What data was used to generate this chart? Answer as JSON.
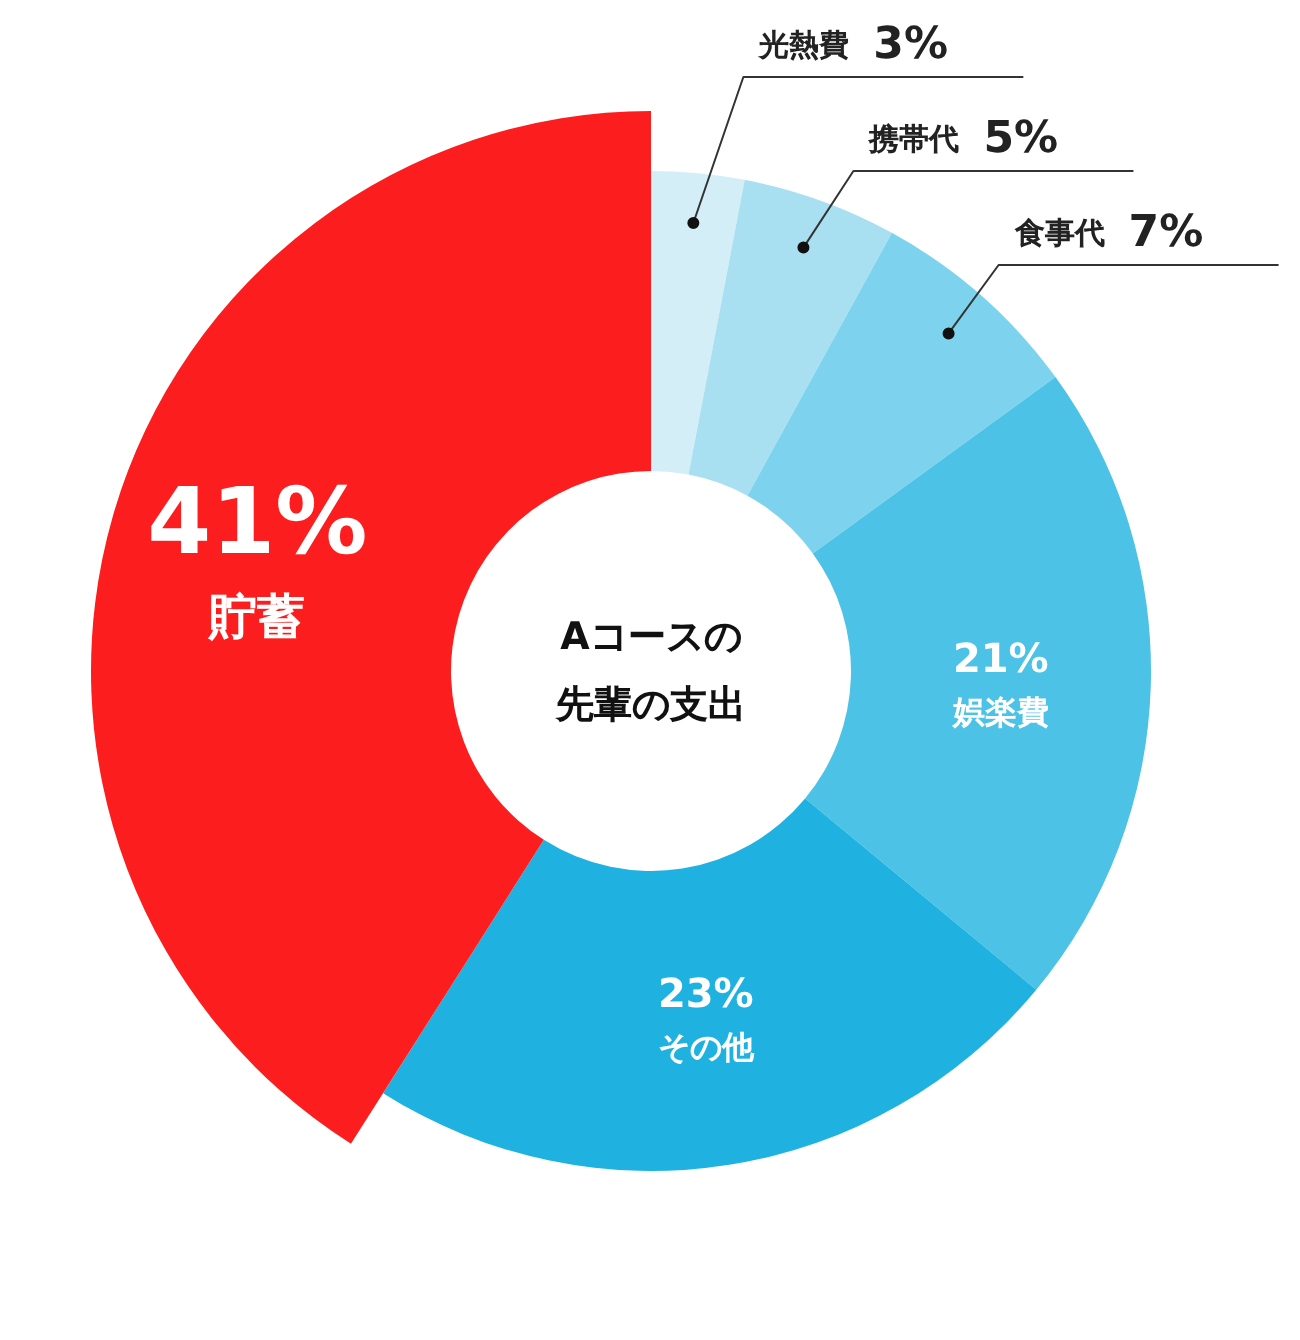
{
  "chart_data": {
    "type": "donut",
    "title": "Aコースの先輩の支出",
    "categories": [
      "光熱費",
      "携帯代",
      "食事代",
      "娯楽費",
      "その他",
      "貯蓄"
    ],
    "values": [
      3,
      5,
      7,
      21,
      23,
      41
    ],
    "value_labels": [
      "3%",
      "5%",
      "7%",
      "21%",
      "23%",
      "41%"
    ],
    "colors": [
      "#d4eef8",
      "#a8e0f2",
      "#7dd3ee",
      "#4bc2e6",
      "#1fb2e0",
      "#fc1e1e"
    ]
  }
}
